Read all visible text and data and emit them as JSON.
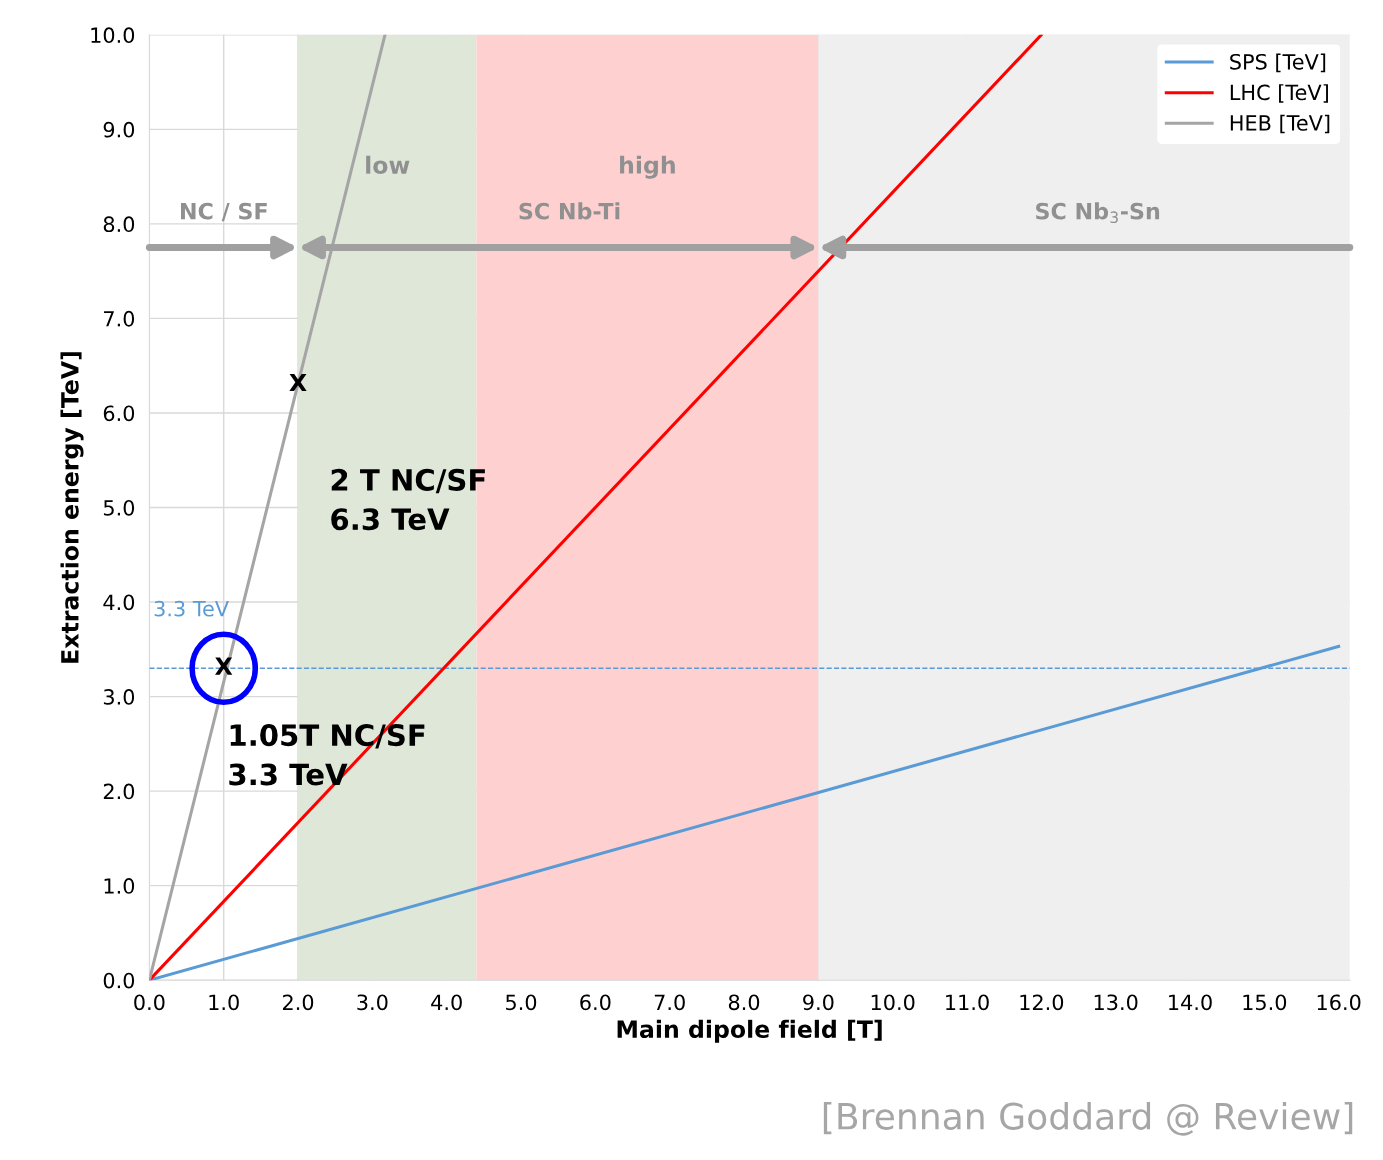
{
  "chart_data": {
    "type": "line",
    "xlabel": "Main dipole field [T]",
    "ylabel": "Extraction energy [TeV]",
    "xlim": [
      0,
      16.15
    ],
    "ylim": [
      0,
      10
    ],
    "xticks": [
      {
        "value": 0,
        "label": "0.0"
      },
      {
        "value": 1,
        "label": "1.0"
      },
      {
        "value": 2,
        "label": "2.0"
      },
      {
        "value": 3,
        "label": "3.0"
      },
      {
        "value": 4,
        "label": "4.0"
      },
      {
        "value": 5,
        "label": "5.0"
      },
      {
        "value": 6,
        "label": "6.0"
      },
      {
        "value": 7,
        "label": "7.0"
      },
      {
        "value": 8,
        "label": "8.0"
      },
      {
        "value": 9,
        "label": "9.0"
      },
      {
        "value": 10,
        "label": "10.0"
      },
      {
        "value": 11,
        "label": "11.0"
      },
      {
        "value": 12,
        "label": "12.0"
      },
      {
        "value": 13,
        "label": "13.0"
      },
      {
        "value": 14,
        "label": "14.0"
      },
      {
        "value": 15,
        "label": "15.0"
      },
      {
        "value": 16,
        "label": "16.0"
      }
    ],
    "yticks": [
      {
        "value": 0,
        "label": "0.0"
      },
      {
        "value": 1,
        "label": "1.0"
      },
      {
        "value": 2,
        "label": "2.0"
      },
      {
        "value": 3,
        "label": "3.0"
      },
      {
        "value": 4,
        "label": "4.0"
      },
      {
        "value": 5,
        "label": "5.0"
      },
      {
        "value": 6,
        "label": "6.0"
      },
      {
        "value": 7,
        "label": "7.0"
      },
      {
        "value": 8,
        "label": "8.0"
      },
      {
        "value": 9,
        "label": "9.0"
      },
      {
        "value": 10,
        "label": "10.0"
      }
    ],
    "series": [
      {
        "name": "SPS [TeV]",
        "color": "#5b9bd5",
        "x": [
          0,
          16
        ],
        "values": [
          0,
          3.53
        ]
      },
      {
        "name": "LHC [TeV]",
        "color": "#ff0000",
        "x": [
          0,
          12
        ],
        "values": [
          0,
          10
        ]
      },
      {
        "name": "HEB [TeV]",
        "color": "#a5a5a5",
        "x": [
          0,
          3.17
        ],
        "values": [
          0,
          10
        ]
      }
    ],
    "bands": [
      {
        "axis": "x",
        "from": 2.0,
        "to": 4.4,
        "label": "low",
        "color": "#dfe7d9"
      },
      {
        "axis": "x",
        "from": 4.4,
        "to": 9.0,
        "label": "high",
        "color": "#ffd0d0"
      },
      {
        "axis": "x",
        "from": 9.0,
        "to": 16.15,
        "label": null,
        "color": "#efefef"
      }
    ],
    "ref_lines": [
      {
        "axis": "y",
        "value": 3.3,
        "label": "3.3 TeV",
        "color": "#5b9bd5",
        "line_style": "dashed"
      }
    ],
    "annotations": [
      "NC / SF",
      "SC Nb-Ti",
      "SC Nb$_{3}$-Sn",
      {
        "text": "X",
        "x": 2.0,
        "y": 6.3
      },
      "2 T NC/SF\n6.3 TeV",
      {
        "text": "X",
        "x": 1.0,
        "y": 3.3
      },
      "1.05T NC/SF\n3.3 TeV",
      "[Brennan Goddard @ Review]"
    ],
    "grid": true,
    "legend": "top right",
    "marker": "none",
    "line_style": "solid"
  }
}
